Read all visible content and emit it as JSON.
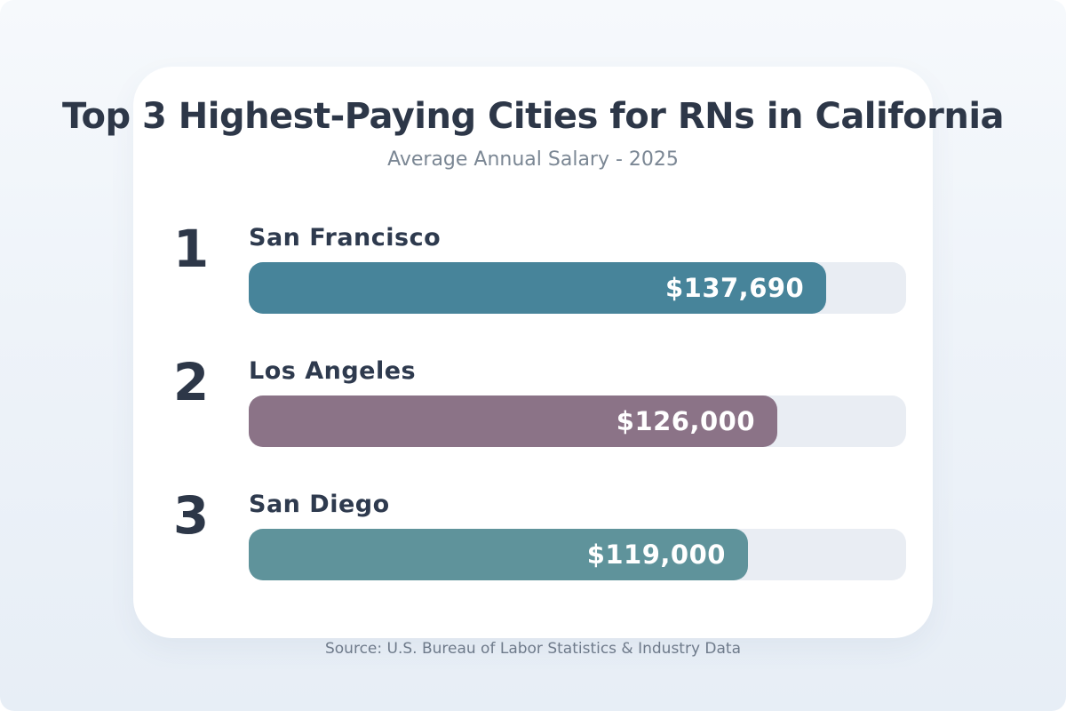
{
  "header": {
    "title": "Top 3 Highest-Paying Cities for RNs in California",
    "subtitle": "Average Annual Salary - 2025"
  },
  "footer": {
    "source": "Source: U.S. Bureau of Labor Statistics & Industry Data"
  },
  "chart_data": {
    "type": "bar",
    "orientation": "horizontal",
    "title": "Top 3 Highest-Paying Cities for RNs in California",
    "subtitle": "Average Annual Salary - 2025",
    "categories": [
      "San Francisco",
      "Los Angeles",
      "San Diego"
    ],
    "values": [
      137690,
      126000,
      119000
    ],
    "value_labels": [
      "$137,690",
      "$126,000",
      "$119,000"
    ],
    "ranks": [
      "1",
      "2",
      "3"
    ],
    "bar_colors": [
      "#47849A",
      "#8B7387",
      "#5F939B"
    ],
    "track_color": "#E9EDF3",
    "scale_max": 156700,
    "legend": "none",
    "grid": false,
    "source": "Source: U.S. Bureau of Labor Statistics & Industry Data"
  },
  "colors": {
    "background_top": "#F6F9FC",
    "background_bottom": "#E7EEF6",
    "card": "#FFFFFF",
    "title_text": "#2D3748",
    "subtitle_text": "#7B8794",
    "rank_text": "#2D3748",
    "city_text": "#2E3A4E",
    "value_text": "#FFFFFF",
    "source_text": "#6E7A8A"
  }
}
